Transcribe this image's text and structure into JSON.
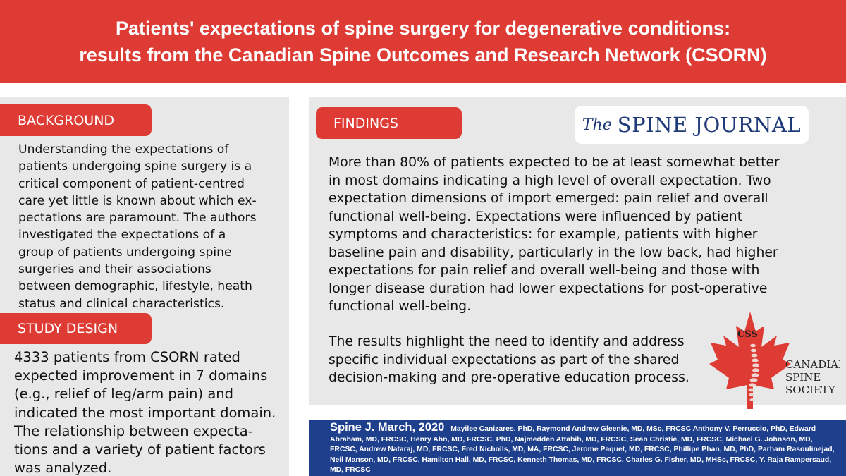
{
  "title": {
    "line1": "Patients' expectations of spine surgery for degenerative conditions:",
    "line2": "results from the Canadian Spine Outcomes and Research Network (CSORN)"
  },
  "background": {
    "heading": "BACKGROUND",
    "lines": [
      "Understanding the expectations of",
      "patients undergoing spine surgery is a",
      "critical component of patient-centred",
      "care yet little is known about which ex-",
      "pectations are paramount.  The authors",
      "investigated the expectations of a",
      "group of patients undergoing spine",
      "surgeries and their associations",
      "between demographic, lifestyle, heath",
      "status and clinical characteristics."
    ]
  },
  "study_design": {
    "heading": "STUDY DESIGN",
    "lines": [
      "4333 patients from CSORN rated",
      "expected improvement in 7 domains",
      "(e.g., relief of leg/arm pain) and",
      "indicated the most important domain.",
      "The relationship between expecta-",
      "tions and a variety of patient factors",
      "was analyzed."
    ]
  },
  "findings": {
    "heading": "FINDINGS",
    "paragraph1": [
      "More than 80% of patients expected to be at least somewhat better",
      "in most domains indicating a high level of overall expectation.  Two",
      "expectation dimensions of import emerged: pain relief and overall",
      "functional well-being. Expectations were influenced by patient",
      "symptoms and characteristics: for example, patients with higher",
      "baseline pain and disability, particularly in the low back, had higher",
      "expectations for pain relief and overall well-being and those with",
      "longer disease duration had lower expectations for post-operative",
      "functional well-being."
    ],
    "paragraph2": [
      "The results highlight the need to identify and address",
      "specific individual expectations as part of the shared",
      "decision-making and pre-operative education process."
    ]
  },
  "journal_logo": {
    "the": "The",
    "name": "SPINE JOURNAL",
    "color": "#1f3a78"
  },
  "society_logo": {
    "abbr": "CSS",
    "line1": "CANADIAN",
    "line2": "SPINE",
    "line3": "SOCIETY",
    "icon": "maple-leaf-spine-icon"
  },
  "footer": {
    "citation": "Spine J. March, 2020",
    "authors": "Mayilee Canizares, PhD, Raymond Andrew Gleenie, MD, MSc, FRCSC Anthony V. Perruccio, PhD, Edward Abraham, MD, FRCSC, Henry Ahn, MD, FRCSC, PhD, Najmedden Attabib, MD, FRCSC, Sean Christie, MD, FRCSC, Michael G. Johnson, MD, FRCSC, Andrew Nataraj, MD, FRCSC, Fred Nicholls, MD, MA, FRCSC, Jerome Paquet, MD, FRCSC, Phillipe Phan, MD, PhD, Parham Rasoulinejad, Neil Manson, MD, FRCSC, Hamilton Hall, MD, FRCSC, Kenneth Thomas, MD, FRCSC, Charles G. Fisher, MD, MHSc, FRCSC, Y. Raja Rampersaud, MD, FRCSC"
  },
  "colors": {
    "accent_red": "#de3b34",
    "panel_gray": "#e8e8e8",
    "footer_blue": "#1e3f8c"
  }
}
